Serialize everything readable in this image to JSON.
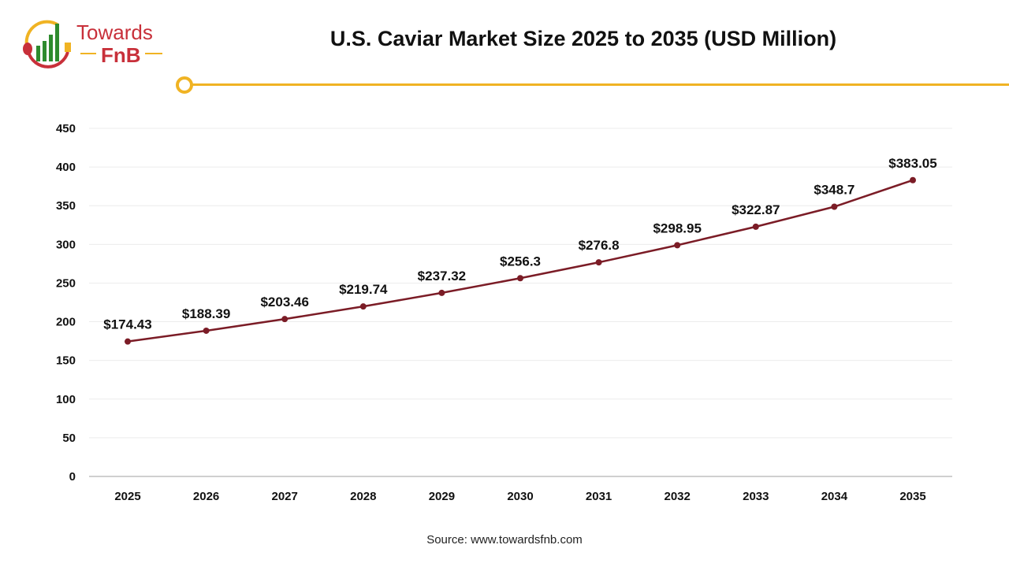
{
  "logo": {
    "text_top": "Towards",
    "text_bottom": "FnB"
  },
  "colors": {
    "line": "#7b1c26",
    "accent": "#f0b323",
    "logo_red": "#c8303a",
    "logo_green": "#2e8b2e"
  },
  "chart_data": {
    "type": "line",
    "title": "U.S. Caviar Market Size 2025 to 2035 (USD Million)",
    "xlabel": "",
    "ylabel": "",
    "categories": [
      "2025",
      "2026",
      "2027",
      "2028",
      "2029",
      "2030",
      "2031",
      "2032",
      "2033",
      "2034",
      "2035"
    ],
    "values": [
      174.43,
      188.39,
      203.46,
      219.74,
      237.32,
      256.3,
      276.8,
      298.95,
      322.87,
      348.7,
      383.05
    ],
    "data_labels": [
      "$174.43",
      "$188.39",
      "$203.46",
      "$219.74",
      "$237.32",
      "$256.3",
      "$276.8",
      "$298.95",
      "$322.87",
      "$348.7",
      "$383.05"
    ],
    "ylim": [
      0,
      450
    ],
    "yticks": [
      "0",
      "50",
      "100",
      "150",
      "200",
      "250",
      "300",
      "350",
      "400",
      "450"
    ],
    "grid": true,
    "legend": "none"
  },
  "source": "Source: www.towardsfnb.com"
}
